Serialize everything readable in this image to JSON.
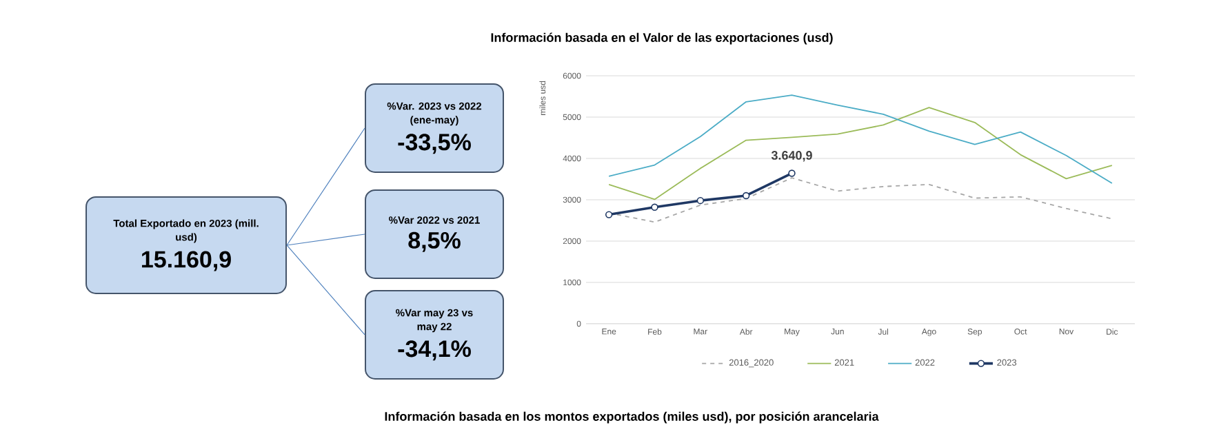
{
  "chart_data": [
    {
      "type": "other",
      "annotations": [
        "Total Exportado en 2023 (mill. usd)",
        "15.160,9",
        "%Var. 2023 vs 2022 (ene-may)",
        "-33,5%",
        "%Var 2022 vs 2021",
        "8,5%",
        "%Var may 23 vs may 22",
        "-34,1%"
      ]
    },
    {
      "type": "line",
      "title": "Información basada en el Valor de las exportaciones (usd)",
      "ylabel": "miles usd",
      "categories": [
        "Ene",
        "Feb",
        "Mar",
        "Abr",
        "May",
        "Jun",
        "Jul",
        "Ago",
        "Sep",
        "Oct",
        "Nov",
        "Dic"
      ],
      "ylim": [
        0,
        6000
      ],
      "yticks": [
        0,
        1000,
        2000,
        3000,
        4000,
        5000,
        6000
      ],
      "grid": "y",
      "legend": "bottom",
      "series": [
        {
          "name": "2016_2020",
          "color": "#a6a6a6",
          "line_style": "dashed",
          "marker": "none",
          "values": [
            2680,
            2460,
            2870,
            3030,
            3530,
            3210,
            3320,
            3370,
            3040,
            3070,
            2790,
            2540
          ]
        },
        {
          "name": "2021",
          "color": "#9bbb59",
          "line_style": "solid",
          "marker": "none",
          "values": [
            3370,
            3010,
            3760,
            4440,
            4510,
            4590,
            4810,
            5230,
            4870,
            4090,
            3510,
            3830
          ]
        },
        {
          "name": "2022",
          "color": "#4bacc6",
          "line_style": "solid",
          "marker": "none",
          "values": [
            3570,
            3840,
            4530,
            5370,
            5530,
            5290,
            5070,
            4660,
            4340,
            4640,
            4070,
            3400
          ]
        },
        {
          "name": "2023",
          "color": "#1f3864",
          "line_style": "solid",
          "marker": "circle",
          "values": [
            2640,
            2820,
            2980,
            3100,
            3640.9,
            null,
            null,
            null,
            null,
            null,
            null,
            null
          ],
          "value_labels": [
            null,
            null,
            null,
            null,
            "3.640,9",
            null,
            null,
            null,
            null,
            null,
            null,
            null
          ]
        }
      ],
      "annotations": [
        "Información basada en los montos exportados (miles usd), por posición arancelaria"
      ]
    }
  ]
}
